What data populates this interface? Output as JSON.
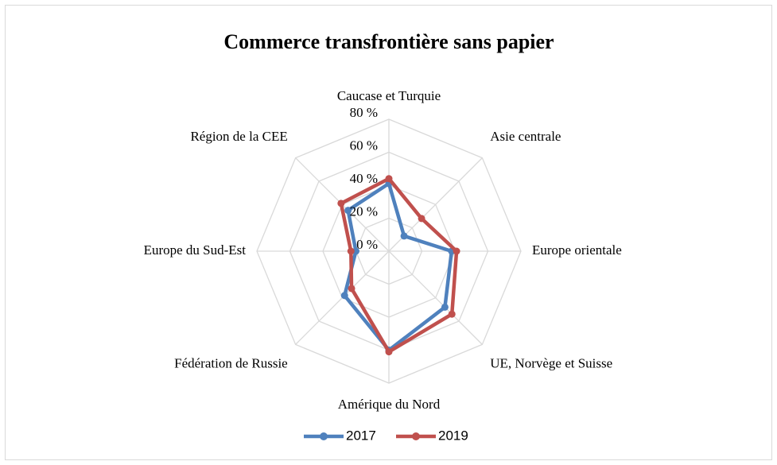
{
  "chart_data": {
    "type": "radar",
    "title": "Commerce transfrontière sans papier",
    "categories": [
      "Caucase et Turquie",
      "Asie centrale",
      "Europe orientale",
      "UE, Norvège et Suisse",
      "Amérique du Nord",
      "Fédération de Russie",
      "Europe du Sud-Est",
      "Région de la CEE"
    ],
    "series": [
      {
        "name": "2017",
        "color": "#4f81bd",
        "values": [
          41,
          13,
          38,
          48,
          60,
          38,
          20,
          35
        ]
      },
      {
        "name": "2019",
        "color": "#c0504d",
        "values": [
          44,
          28,
          41,
          54,
          61,
          32,
          23,
          41
        ]
      }
    ],
    "ylim": [
      0,
      80
    ],
    "yticks": [
      {
        "value": 0,
        "label": "0 %"
      },
      {
        "value": 20,
        "label": "20 %"
      },
      {
        "value": 40,
        "label": "40 %"
      },
      {
        "value": 60,
        "label": "60 %"
      },
      {
        "value": 80,
        "label": "80 %"
      }
    ],
    "grid": true,
    "legend": "bottom"
  }
}
